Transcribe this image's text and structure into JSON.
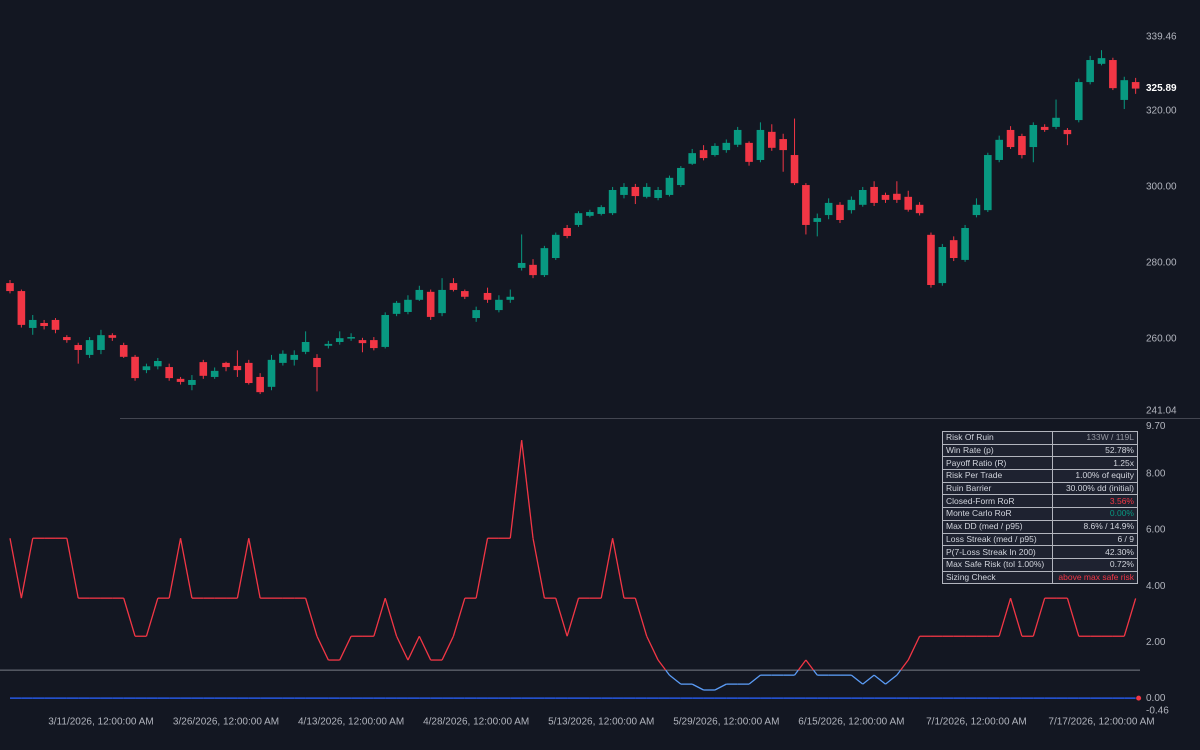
{
  "chart_data": [
    {
      "type": "candlestick",
      "open": [
        274.7,
        272.6,
        262.9,
        264.2,
        265.0,
        260.5,
        258.4,
        255.8,
        257.1,
        261.0,
        258.4,
        255.3,
        251.8,
        252.8,
        252.6,
        249.5,
        247.9,
        253.9,
        250.0,
        253.7,
        252.9,
        253.7,
        250.0,
        247.4,
        253.7,
        254.5,
        256.6,
        255.0,
        258.2,
        259.2,
        260.1,
        259.7,
        259.7,
        257.9,
        266.6,
        267.1,
        270.3,
        272.4,
        266.8,
        274.7,
        272.6,
        265.5,
        272.1,
        267.6,
        270.3,
        278.7,
        279.5,
        276.8,
        281.3,
        289.2,
        290.0,
        292.4,
        292.9,
        293.1,
        297.9,
        300.0,
        297.4,
        297.1,
        297.9,
        300.5,
        306.1,
        309.7,
        308.4,
        309.7,
        311.1,
        311.6,
        307.1,
        314.5,
        312.6,
        308.4,
        300.5,
        290.8,
        292.6,
        295.3,
        293.9,
        295.3,
        300.0,
        297.9,
        298.2,
        297.4,
        295.3,
        287.4,
        274.7,
        286.0,
        280.8,
        292.6,
        293.9,
        307.1,
        315.0,
        313.4,
        310.5,
        315.8,
        315.8,
        315.0,
        317.6,
        327.6,
        332.4,
        333.4,
        322.9,
        327.6
      ],
      "high": [
        275.5,
        273,
        266.3,
        265,
        265.5,
        261,
        259,
        260.5,
        262.4,
        261.5,
        259,
        255.8,
        253.5,
        255,
        253.5,
        250,
        250.5,
        254.5,
        252.5,
        254,
        257,
        254.5,
        251,
        255.8,
        257,
        257,
        262,
        256,
        259.5,
        262,
        261.5,
        260.3,
        260.5,
        267,
        270,
        271.5,
        274,
        273,
        276,
        276,
        273,
        268.5,
        273.5,
        271.5,
        273,
        287.5,
        281,
        284.5,
        288,
        290,
        293.6,
        294,
        295.2,
        300,
        301,
        300.8,
        301,
        300,
        303,
        305.5,
        310,
        311,
        311.5,
        312.5,
        315.8,
        312,
        317,
        316.5,
        314,
        318,
        301,
        293,
        297,
        296,
        297.5,
        300,
        301.5,
        298.5,
        301.5,
        299,
        296,
        288,
        285,
        287,
        290,
        297,
        309,
        313.5,
        316,
        314,
        317,
        316.5,
        323,
        315.5,
        328.5,
        334.5,
        336,
        334,
        329,
        328.7
      ],
      "low": [
        272,
        263,
        261.1,
        262.5,
        261.5,
        259,
        253.5,
        255,
        256,
        259.5,
        255,
        249,
        251,
        252,
        249,
        248,
        246.5,
        249.5,
        249.5,
        251.5,
        250,
        248,
        245.5,
        246.5,
        253,
        253,
        256,
        246.2,
        257.5,
        258.5,
        259.5,
        256.5,
        257,
        257.5,
        266,
        266.5,
        270,
        265,
        266,
        272.5,
        270.5,
        264.5,
        269.5,
        267,
        269.5,
        278,
        276,
        276.3,
        280.8,
        286.5,
        289.5,
        292,
        292.5,
        292.6,
        297,
        295.5,
        297,
        296.5,
        297.5,
        300,
        305.8,
        307,
        308,
        309,
        310.5,
        305.6,
        306.5,
        309.5,
        304,
        300.5,
        287.5,
        287,
        291.5,
        290.5,
        293,
        294.8,
        295,
        295.8,
        295.8,
        293.5,
        292.5,
        273.5,
        274,
        280.5,
        280.3,
        292,
        293.4,
        306.5,
        310,
        307.5,
        306.5,
        314.5,
        315.2,
        311,
        317,
        327,
        332,
        325.5,
        320.5,
        324.5
      ],
      "close": [
        272.6,
        263.7,
        265.0,
        263.4,
        262.4,
        259.7,
        257.1,
        259.7,
        261.0,
        260.3,
        255.3,
        249.7,
        252.8,
        254.2,
        249.7,
        248.7,
        249.2,
        250.3,
        251.6,
        252.6,
        251.8,
        248.4,
        246.0,
        254.5,
        256.1,
        255.8,
        259.2,
        252.6,
        258.7,
        260.2,
        260.5,
        258.9,
        257.6,
        266.3,
        269.5,
        270.3,
        272.9,
        265.8,
        272.9,
        272.9,
        271.1,
        267.6,
        270.3,
        270.3,
        271.1,
        280.0,
        276.8,
        283.9,
        287.4,
        287.1,
        293.1,
        293.4,
        294.7,
        299.2,
        300.0,
        297.6,
        300.0,
        299.2,
        302.4,
        305.0,
        308.9,
        307.6,
        310.8,
        311.6,
        315.0,
        306.6,
        315.0,
        310.3,
        309.7,
        301.0,
        290.0,
        291.8,
        295.8,
        291.3,
        296.6,
        299.2,
        295.8,
        296.6,
        296.6,
        294.0,
        293.1,
        274.2,
        284.2,
        281.3,
        289.2,
        295.3,
        308.4,
        312.4,
        310.5,
        308.4,
        316.3,
        315.0,
        318.2,
        313.9,
        327.6,
        333.4,
        333.9,
        326.0,
        328.1,
        325.89
      ],
      "up_color": "#089981",
      "down_color": "#f23645",
      "last_value_label": true,
      "ylim": [
        241.04,
        339.46
      ],
      "yticks": [
        {
          "value": 241.04,
          "label": "241.04"
        },
        {
          "value": 260,
          "label": "260.00"
        },
        {
          "value": 280,
          "label": "280.00"
        },
        {
          "value": 300,
          "label": "300.00"
        },
        {
          "value": 320,
          "label": "320.00"
        },
        {
          "value": 339.46,
          "label": "339.46"
        }
      ]
    },
    {
      "type": "line",
      "categories": [
        null,
        null,
        null,
        null,
        null,
        null,
        null,
        null,
        "3/11/2026, 12:00:00 AM",
        null,
        null,
        null,
        null,
        null,
        null,
        null,
        null,
        null,
        null,
        "3/26/2026, 12:00:00 AM",
        null,
        null,
        null,
        null,
        null,
        null,
        null,
        null,
        null,
        null,
        "4/13/2026, 12:00:00 AM",
        null,
        null,
        null,
        null,
        null,
        null,
        null,
        null,
        null,
        null,
        "4/28/2026, 12:00:00 AM",
        null,
        null,
        null,
        null,
        null,
        null,
        null,
        null,
        null,
        null,
        "5/13/2026, 12:00:00 AM",
        null,
        null,
        null,
        null,
        null,
        null,
        null,
        null,
        null,
        null,
        "5/29/2026, 12:00:00 AM",
        null,
        null,
        null,
        null,
        null,
        null,
        null,
        null,
        null,
        null,
        "6/15/2026, 12:00:00 AM",
        null,
        null,
        null,
        null,
        null,
        null,
        null,
        null,
        null,
        null,
        "7/1/2026, 12:00:00 AM",
        null,
        null,
        null,
        null,
        null,
        null,
        null,
        null,
        null,
        null,
        "7/17/2026, 12:00:00 AM",
        null,
        null,
        null
      ],
      "series": [
        {
          "color_above": "#f23645",
          "color_below": "#5b9cf6",
          "values": [
            5.71,
            3.57,
            5.71,
            5.71,
            5.71,
            5.71,
            3.57,
            3.57,
            3.57,
            3.57,
            3.57,
            2.21,
            2.21,
            3.57,
            3.57,
            5.71,
            3.57,
            3.57,
            3.57,
            3.57,
            3.57,
            5.71,
            3.57,
            3.57,
            3.57,
            3.57,
            3.57,
            2.21,
            1.36,
            1.36,
            2.21,
            2.21,
            2.21,
            3.57,
            2.21,
            1.36,
            2.21,
            1.36,
            1.36,
            2.21,
            3.57,
            3.57,
            5.71,
            5.71,
            5.71,
            9.21,
            5.71,
            3.57,
            3.57,
            2.21,
            3.57,
            3.57,
            3.57,
            5.71,
            3.57,
            3.57,
            2.21,
            1.36,
            0.82,
            0.5,
            0.5,
            0.29,
            0.29,
            0.5,
            0.5,
            0.5,
            0.82,
            0.82,
            0.82,
            0.82,
            1.36,
            0.82,
            0.82,
            0.82,
            0.82,
            0.5,
            0.82,
            0.5,
            0.82,
            1.36,
            2.21,
            2.21,
            2.21,
            2.21,
            2.21,
            2.21,
            2.21,
            2.21,
            3.57,
            2.21,
            2.21,
            3.57,
            3.57,
            3.57,
            2.21,
            2.21,
            2.21,
            2.21,
            2.21,
            3.56
          ]
        },
        {
          "color": "#2962ff",
          "last_marker_color": "#f23645",
          "values": [
            0,
            0,
            0,
            0,
            0,
            0,
            0,
            0,
            0,
            0,
            0,
            0,
            0,
            0,
            0,
            0,
            0,
            0,
            0,
            0,
            0,
            0,
            0,
            0,
            0,
            0,
            0,
            0,
            0,
            0,
            0,
            0,
            0,
            0,
            0,
            0,
            0,
            0,
            0,
            0,
            0,
            0,
            0,
            0,
            0,
            0,
            0,
            0,
            0,
            0,
            0,
            0,
            0,
            0,
            0,
            0,
            0,
            0,
            0,
            0,
            0,
            0,
            0,
            0,
            0,
            0,
            0,
            0,
            0,
            0,
            0,
            0,
            0,
            0,
            0,
            0,
            0,
            0,
            0,
            0,
            0,
            0,
            0,
            0,
            0,
            0,
            0,
            0,
            0,
            0,
            0,
            0,
            0,
            0,
            0,
            0,
            0,
            0,
            0,
            0
          ]
        }
      ],
      "threshold": 1,
      "threshold_color": "#787b86",
      "ylim": [
        -0.46,
        9.7
      ],
      "yticks": [
        {
          "value": -0.46,
          "label": "-0.46"
        },
        {
          "value": 0,
          "label": "0.00"
        },
        {
          "value": 2,
          "label": "2.00"
        },
        {
          "value": 4,
          "label": "4.00"
        },
        {
          "value": 6,
          "label": "6.00"
        },
        {
          "value": 8,
          "label": "8.00"
        },
        {
          "value": 9.7,
          "label": "9.70"
        }
      ]
    }
  ],
  "table": {
    "rows": [
      [
        "Risk Of Ruin",
        "133W / 119L"
      ],
      [
        "Win Rate (p)",
        "52.78%"
      ],
      [
        "Payoff Ratio (R)",
        "1.25x"
      ],
      [
        "Risk Per Trade",
        "1.00% of equity"
      ],
      [
        "Ruin Barrier",
        "30.00% dd (initial)"
      ],
      [
        "Closed-Form RoR",
        "3.56%"
      ],
      [
        "Monte Carlo RoR",
        "0.00%"
      ],
      [
        "Max DD (med / p95)",
        "8.6% / 14.9%"
      ],
      [
        "Loss Streak (med / p95)",
        "6 / 9"
      ],
      [
        "P(7-Loss Streak In 200)",
        "42.30%"
      ],
      [
        "Max Safe Risk (tol 1.00%)",
        "0.72%"
      ],
      [
        "Sizing Check",
        "above max safe risk"
      ]
    ],
    "value_colors": [
      "#9598a1",
      "#d1d4dc",
      "#d1d4dc",
      "#d1d4dc",
      "#d1d4dc",
      "#f23645",
      "#089981",
      "#d1d4dc",
      "#d1d4dc",
      "#d1d4dc",
      "#d1d4dc",
      "#f23645"
    ]
  }
}
